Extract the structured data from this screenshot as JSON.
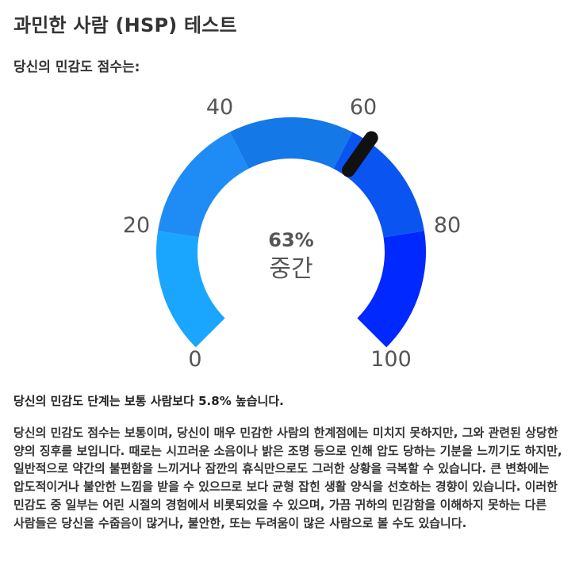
{
  "header": {
    "title": "과민한 사람 (HSP) 테스트",
    "subtitle": "당신의 민감도 점수는:"
  },
  "gauge": {
    "value_percent": 63,
    "value_label": "63%",
    "level_label": "중간",
    "scale_labels": [
      "0",
      "20",
      "40",
      "60",
      "80",
      "100"
    ],
    "min": 0,
    "max": 100,
    "colors": {
      "segment_0_20": "#1aa6ff",
      "segment_20_40": "#1f8cf5",
      "segment_40_60": "#1479e6",
      "segment_60_80": "#0a55f2",
      "segment_80_100": "#0028ff",
      "needle": "#111111"
    }
  },
  "summary": {
    "prefix": "당신의 민감도 단계는 보통 사람보다 ",
    "percent": "5.8%",
    "suffix": " 높습니다."
  },
  "description": "당신의 민감도 점수는 보통이며, 당신이 매우 민감한 사람의 한계점에는 미치지 못하지만, 그와 관련된 상당한 양의 징후를 보입니다. 때로는 시끄러운 소음이나 밝은 조명 등으로 인해 압도 당하는 기분을 느끼기도 하지만, 일반적으로 약간의 불편함을 느끼거나 잠깐의 휴식만으로도 그러한 상황을 극복할 수 있습니다. 큰 변화에는 압도적이거나 불안한 느낌을 받을 수 있으므로 보다 균형 잡힌 생활 양식을 선호하는 경향이 있습니다. 이러한 민감도 중 일부는 어린 시절의 경험에서 비롯되었을 수 있으며, 가끔 귀하의 민감함을 이해하지 못하는 다른 사람들은 당신을 수줍음이 많거나, 불안한, 또는 두려움이 많은 사람으로 볼 수도 있습니다."
}
